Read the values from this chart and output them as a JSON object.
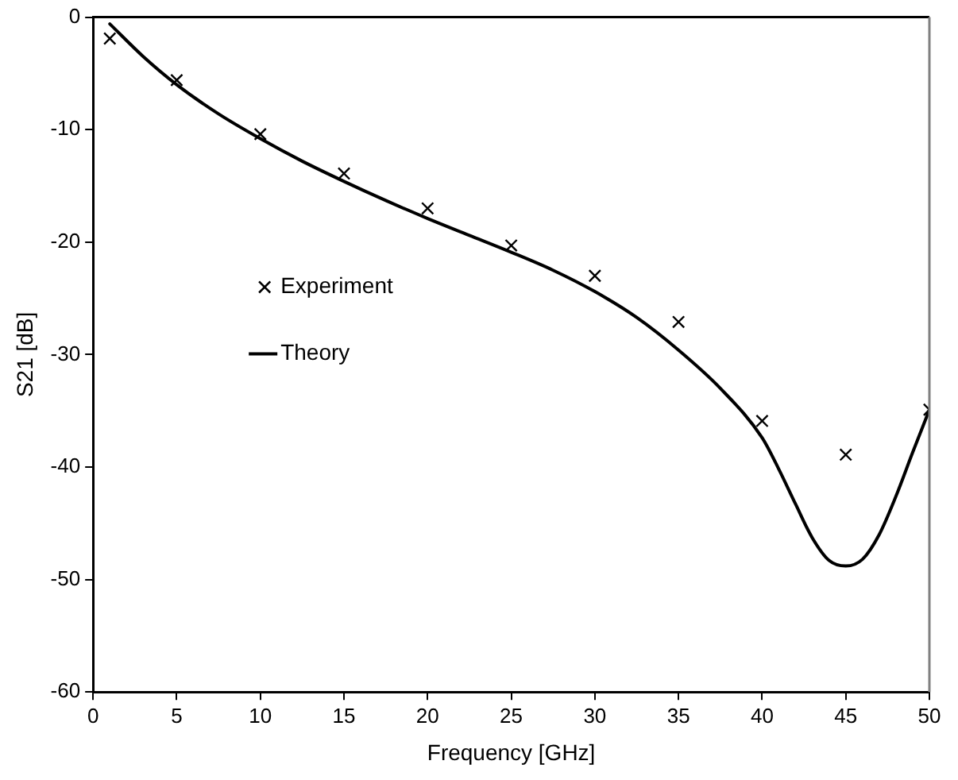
{
  "chart_data": {
    "type": "scatter",
    "xlabel": "Frequency [GHz]",
    "ylabel": "S21 [dB]",
    "xlim": [
      0,
      50
    ],
    "xticks": [
      0,
      5,
      10,
      15,
      20,
      25,
      30,
      35,
      40,
      45,
      50
    ],
    "ylim": [
      -60,
      0
    ],
    "yticks": [
      -60,
      -50,
      -40,
      -30,
      -20,
      -10,
      0
    ],
    "grid": false,
    "legend": "left",
    "series": [
      {
        "name": "Experiment",
        "marker": "cross",
        "color": "#000000",
        "x": [
          1,
          5,
          10,
          15,
          20,
          25,
          30,
          35,
          40,
          45,
          50
        ],
        "values": [
          -1.9,
          -5.6,
          -10.4,
          -13.9,
          -17,
          -20.3,
          -23,
          -27.1,
          -35.9,
          -38.9,
          -34.9
        ]
      },
      {
        "name": "Theory",
        "type": "line",
        "marker": "none",
        "line_style": "solid",
        "color": "#000000",
        "x": [
          1,
          3,
          5,
          7.5,
          10,
          12.5,
          15,
          17.5,
          20,
          22.5,
          25,
          27.5,
          30,
          32.5,
          35,
          37.5,
          40,
          41,
          42,
          43,
          44,
          45,
          46,
          47,
          48,
          49,
          50
        ],
        "values": [
          -0.6,
          -3.5,
          -6,
          -8.6,
          -10.8,
          -12.8,
          -14.6,
          -16.3,
          -17.9,
          -19.4,
          -20.9,
          -22.5,
          -24.4,
          -26.7,
          -29.6,
          -33,
          -37.4,
          -40.2,
          -43.3,
          -46.3,
          -48.3,
          -48.8,
          -48.2,
          -46,
          -42.6,
          -38.7,
          -34.9
        ]
      }
    ]
  }
}
